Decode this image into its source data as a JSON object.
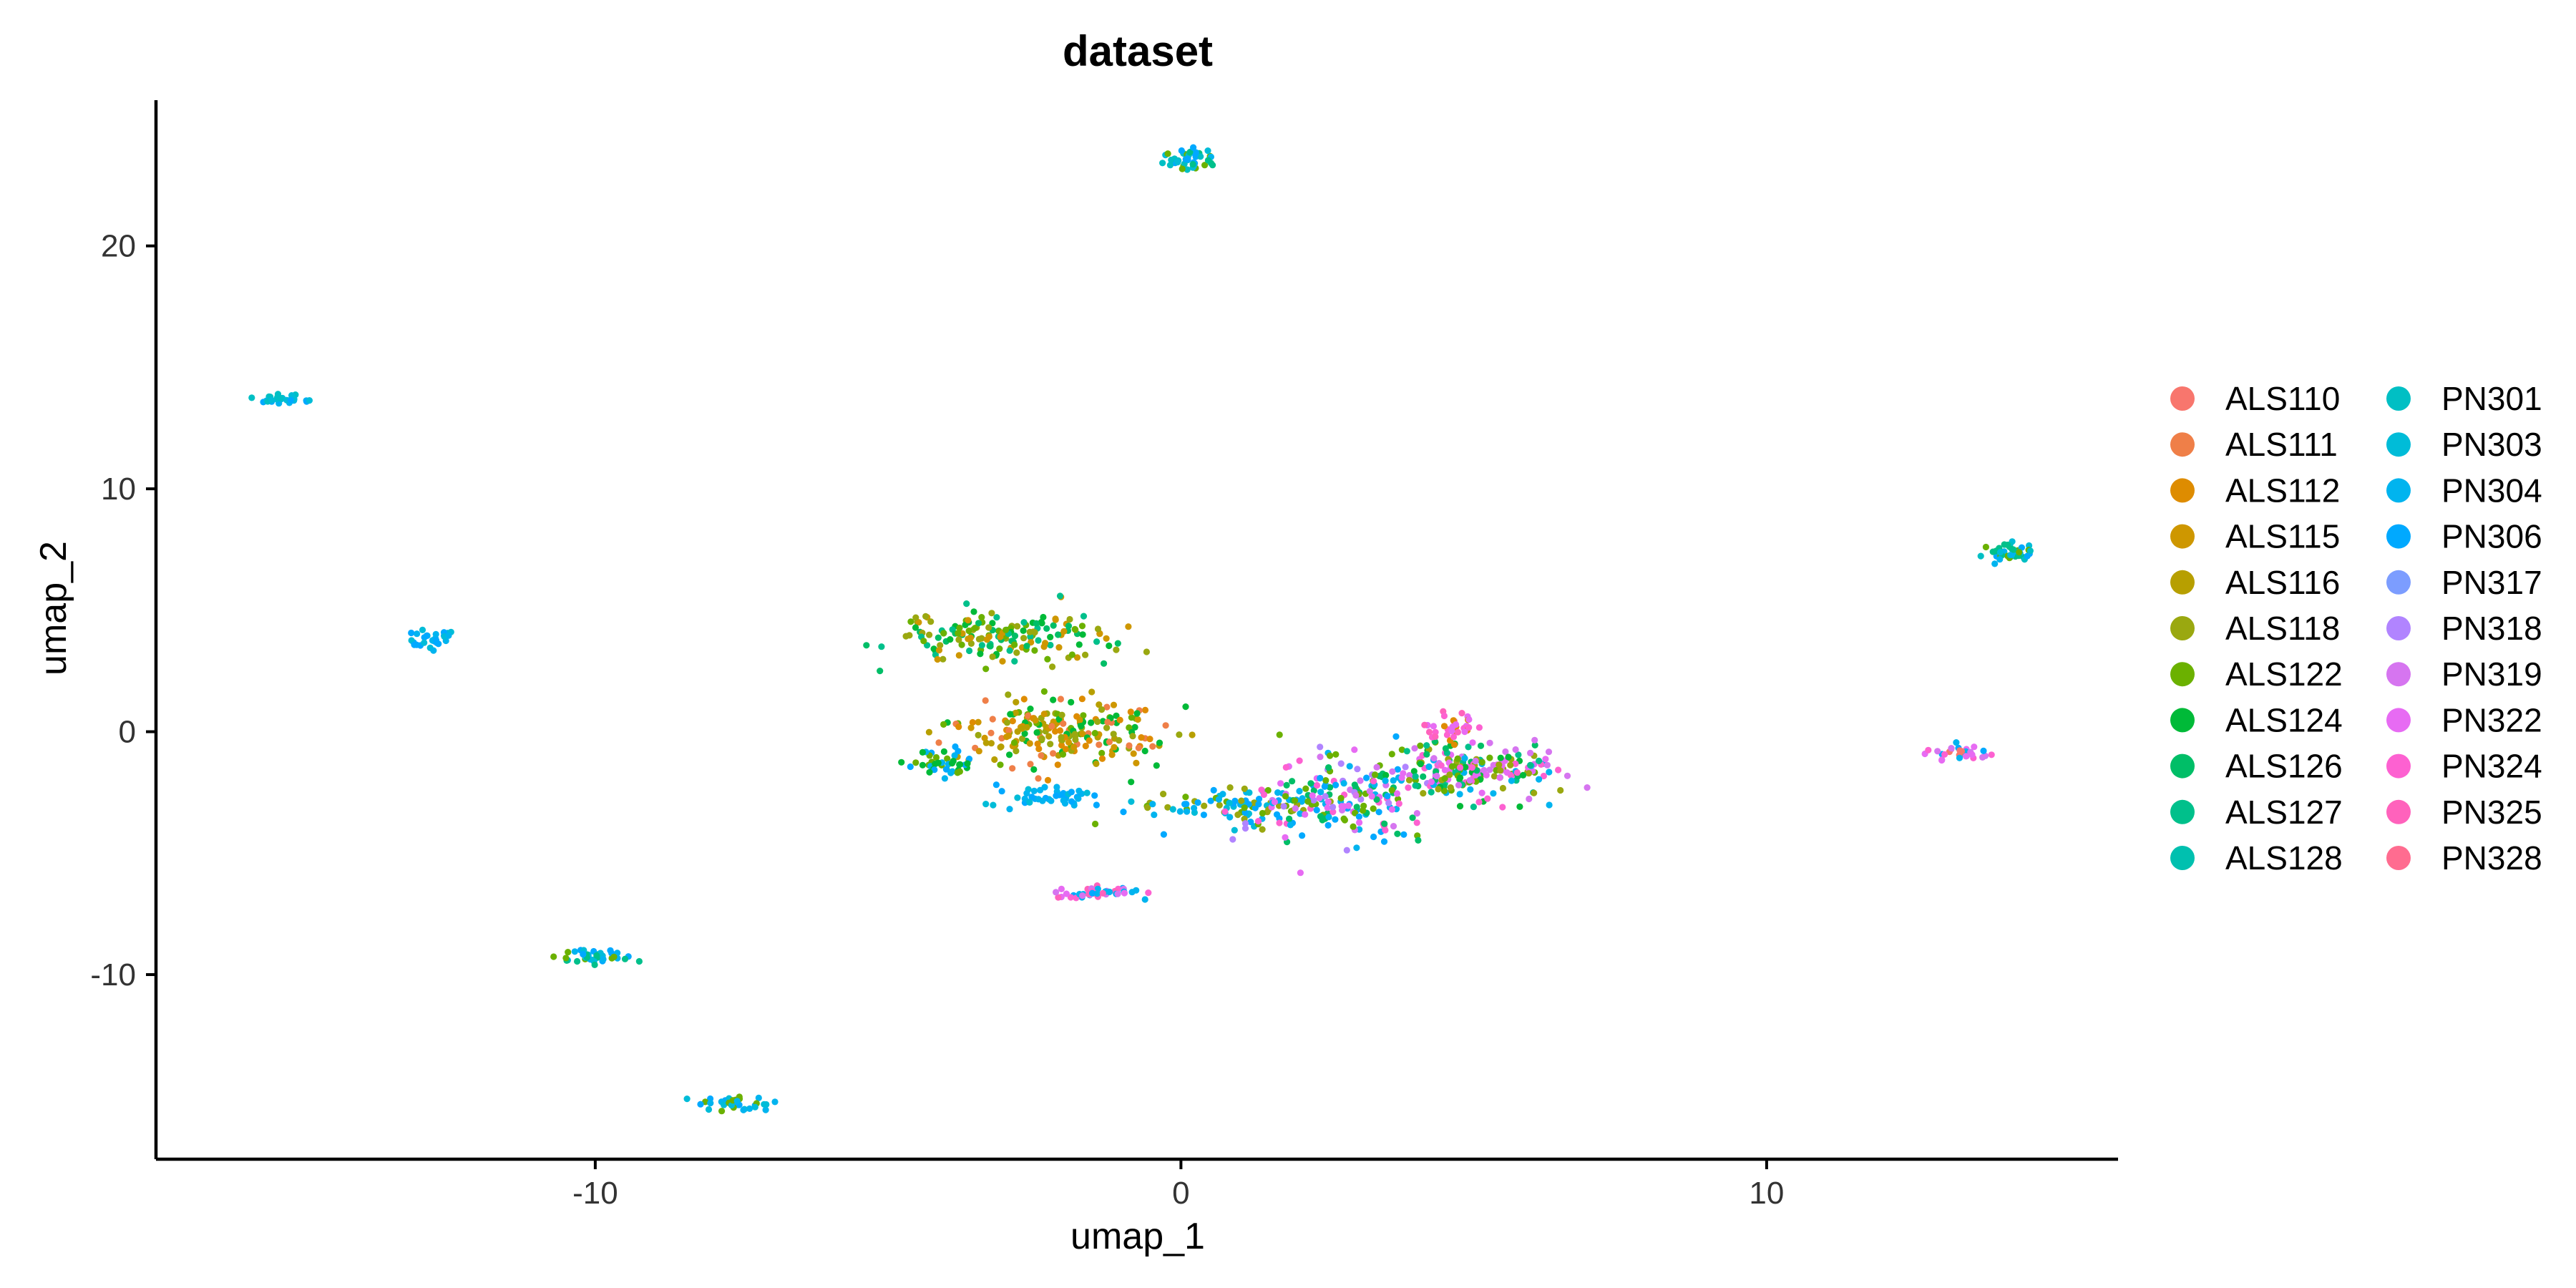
{
  "chart_data": {
    "type": "scatter",
    "title": "dataset",
    "xlabel": "umap_1",
    "ylabel": "umap_2",
    "xlim": [
      -17.5,
      16.0
    ],
    "ylim": [
      -17.6,
      26.0
    ],
    "xticks": [
      -10,
      0,
      10
    ],
    "yticks": [
      -10,
      0,
      10,
      20
    ],
    "grid": false,
    "legend_placement": "right",
    "point_radius": 2.2,
    "series": [
      {
        "name": "ALS110",
        "color": "#F8766D"
      },
      {
        "name": "ALS111",
        "color": "#EF7F48"
      },
      {
        "name": "ALS112",
        "color": "#DE8C00"
      },
      {
        "name": "ALS115",
        "color": "#CE9700"
      },
      {
        "name": "ALS116",
        "color": "#B79F00"
      },
      {
        "name": "ALS118",
        "color": "#9AA810"
      },
      {
        "name": "ALS122",
        "color": "#6BB100"
      },
      {
        "name": "ALS124",
        "color": "#00BA38"
      },
      {
        "name": "ALS126",
        "color": "#00BE67"
      },
      {
        "name": "ALS127",
        "color": "#00C08B"
      },
      {
        "name": "ALS128",
        "color": "#00C0AF"
      },
      {
        "name": "PN301",
        "color": "#00BFC4"
      },
      {
        "name": "PN303",
        "color": "#00BCD8"
      },
      {
        "name": "PN304",
        "color": "#00B4EF"
      },
      {
        "name": "PN306",
        "color": "#00A9FF"
      },
      {
        "name": "PN317",
        "color": "#7C9DFF"
      },
      {
        "name": "PN318",
        "color": "#B184FF"
      },
      {
        "name": "PN319",
        "color": "#D675F0"
      },
      {
        "name": "PN322",
        "color": "#E76BF3"
      },
      {
        "name": "PN324",
        "color": "#FD61D1"
      },
      {
        "name": "PN325",
        "color": "#FF62BC"
      },
      {
        "name": "PN328",
        "color": "#FF6C90"
      }
    ],
    "clusters": [
      {
        "cx": 0.15,
        "cy": 23.6,
        "sx": 0.25,
        "sy": 0.25,
        "n": 45,
        "series": [
          13,
          14,
          12,
          11,
          6,
          9
        ]
      },
      {
        "cx": -15.4,
        "cy": 13.7,
        "sx": 0.22,
        "sy": 0.12,
        "n": 30,
        "series": [
          13,
          14,
          12,
          11
        ]
      },
      {
        "cx": -12.8,
        "cy": 3.8,
        "sx": 0.2,
        "sy": 0.2,
        "n": 30,
        "series": [
          13,
          14,
          12
        ]
      },
      {
        "cx": 14.2,
        "cy": 7.4,
        "sx": 0.25,
        "sy": 0.2,
        "n": 40,
        "series": [
          13,
          14,
          11,
          12,
          6,
          9
        ]
      },
      {
        "cx": 13.3,
        "cy": -0.9,
        "sx": 0.3,
        "sy": 0.12,
        "n": 30,
        "series": [
          18,
          19,
          13,
          14,
          0,
          17
        ]
      },
      {
        "cx": -9.9,
        "cy": -9.3,
        "sx": 0.28,
        "sy": 0.15,
        "n": 40,
        "series": [
          13,
          14,
          12,
          6,
          9
        ]
      },
      {
        "cx": -7.6,
        "cy": -15.3,
        "sx": 0.25,
        "sy": 0.15,
        "n": 35,
        "series": [
          13,
          14,
          12,
          6
        ]
      },
      {
        "cx": -1.4,
        "cy": -6.6,
        "sx": 0.35,
        "sy": 0.12,
        "n": 45,
        "series": [
          18,
          19,
          13,
          14,
          17,
          20
        ]
      },
      {
        "cx": -3.1,
        "cy": 3.9,
        "sx": 0.9,
        "sy": 0.55,
        "n": 170,
        "series": [
          6,
          7,
          8,
          5,
          9,
          3
        ]
      },
      {
        "cx": -2.1,
        "cy": 0.0,
        "sx": 0.9,
        "sy": 0.7,
        "n": 220,
        "series": [
          6,
          5,
          3,
          2,
          4,
          1,
          7
        ]
      },
      {
        "cx": -4.1,
        "cy": -1.3,
        "sx": 0.3,
        "sy": 0.3,
        "n": 40,
        "series": [
          13,
          14,
          6,
          7
        ]
      },
      {
        "cx": -2.2,
        "cy": -2.7,
        "sx": 0.45,
        "sy": 0.25,
        "n": 45,
        "series": [
          13,
          14,
          12
        ]
      },
      {
        "cx": 0.8,
        "cy": -3.1,
        "sx": 0.8,
        "sy": 0.4,
        "n": 90,
        "series": [
          6,
          5,
          13,
          14,
          12
        ]
      },
      {
        "cx": 2.7,
        "cy": -2.8,
        "sx": 0.8,
        "sy": 0.8,
        "n": 190,
        "series": [
          18,
          19,
          16,
          17,
          6,
          13,
          14,
          8
        ]
      },
      {
        "cx": 4.9,
        "cy": -1.7,
        "sx": 0.75,
        "sy": 0.6,
        "n": 220,
        "series": [
          18,
          19,
          17,
          6,
          7,
          8,
          13,
          9,
          5
        ]
      },
      {
        "cx": 4.7,
        "cy": 0.2,
        "sx": 0.25,
        "sy": 0.3,
        "n": 35,
        "series": [
          18,
          19,
          20,
          2
        ]
      }
    ]
  }
}
